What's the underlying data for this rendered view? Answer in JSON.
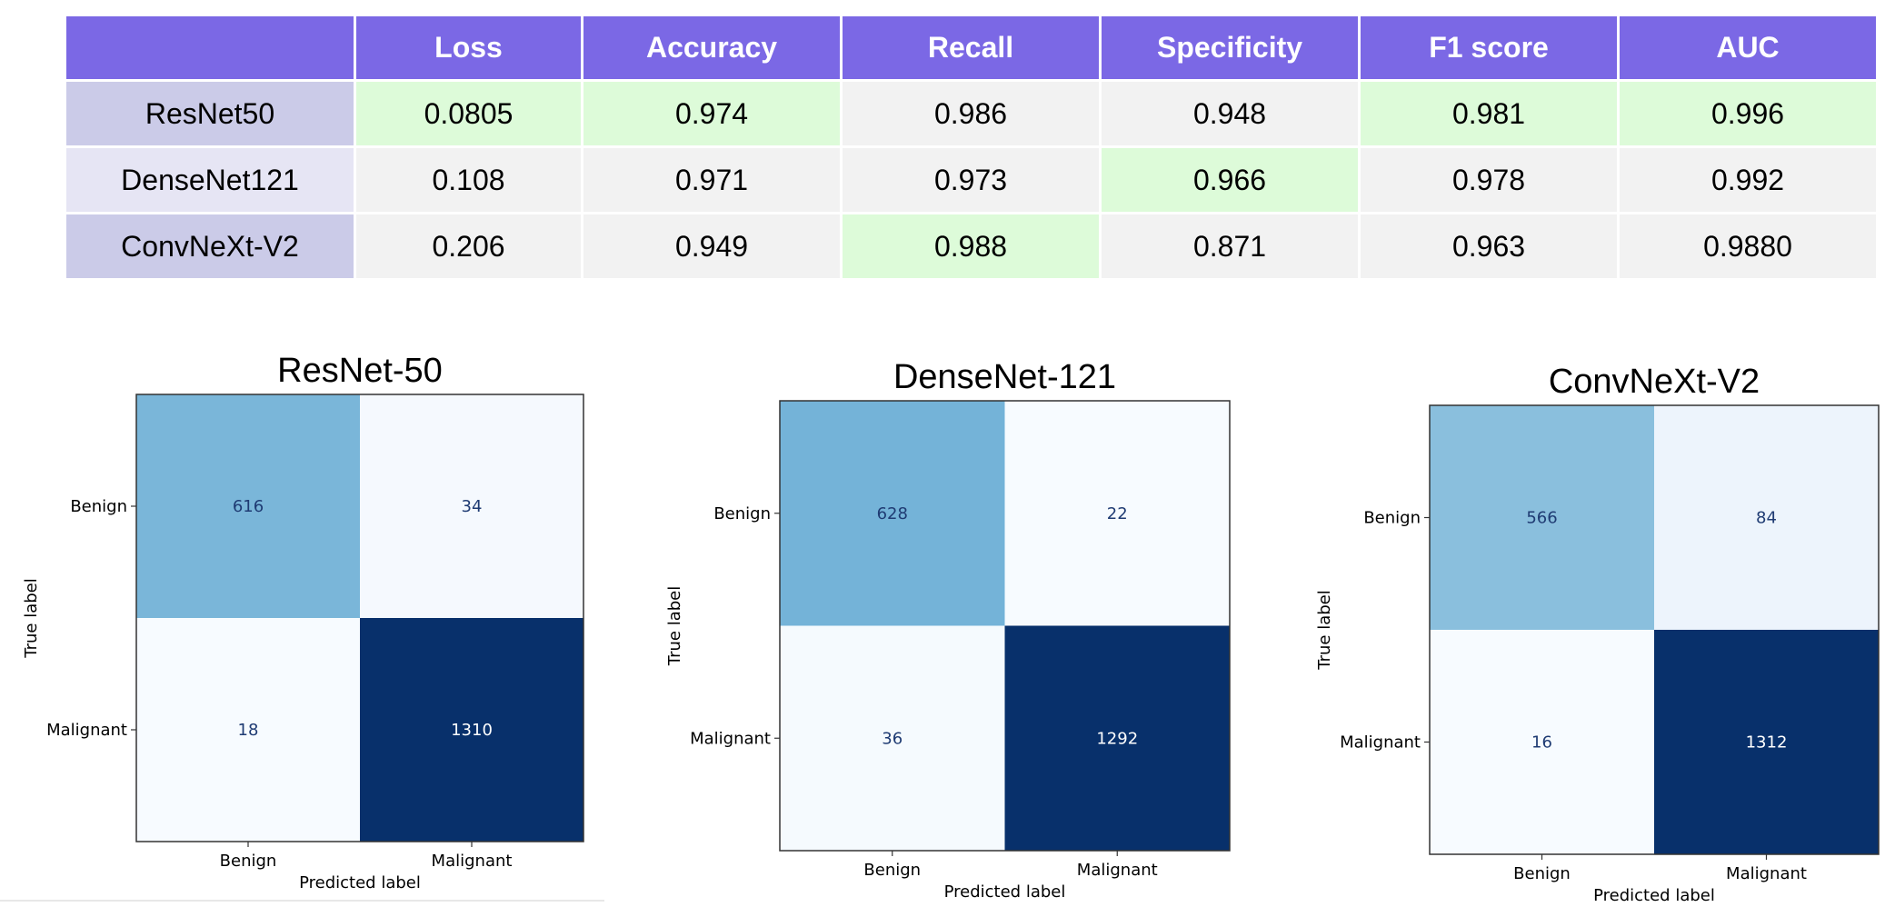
{
  "table": {
    "headers": [
      "",
      "Loss",
      "Accuracy",
      "Recall",
      "Specificity",
      "F1 score",
      "AUC"
    ],
    "rows": [
      {
        "model": "ResNet50",
        "values": [
          "0.0805",
          "0.974",
          "0.986",
          "0.948",
          "0.981",
          "0.996"
        ],
        "highlight": [
          true,
          true,
          false,
          false,
          true,
          true
        ]
      },
      {
        "model": "DenseNet121",
        "values": [
          "0.108",
          "0.971",
          "0.973",
          "0.966",
          "0.978",
          "0.992"
        ],
        "highlight": [
          false,
          false,
          false,
          true,
          false,
          false
        ]
      },
      {
        "model": "ConvNeXt-V2",
        "values": [
          "0.206",
          "0.949",
          "0.988",
          "0.871",
          "0.963",
          "0.9880"
        ],
        "highlight": [
          false,
          false,
          true,
          false,
          false,
          false
        ]
      }
    ],
    "colors": {
      "header": "#7b68e5",
      "best": "#ddfbd9",
      "cell": "#f2f2f2"
    }
  },
  "chart_data": [
    {
      "type": "heatmap",
      "title": "ResNet-50",
      "xlabel": "Predicted label",
      "ylabel": "True label",
      "x_categories": [
        "Benign",
        "Malignant"
      ],
      "y_categories": [
        "Benign",
        "Malignant"
      ],
      "matrix": [
        [
          616,
          34
        ],
        [
          18,
          1310
        ]
      ],
      "colormap": "Blues"
    },
    {
      "type": "heatmap",
      "title": "DenseNet-121",
      "xlabel": "Predicted label",
      "ylabel": "True label",
      "x_categories": [
        "Benign",
        "Malignant"
      ],
      "y_categories": [
        "Benign",
        "Malignant"
      ],
      "matrix": [
        [
          628,
          22
        ],
        [
          36,
          1292
        ]
      ],
      "colormap": "Blues"
    },
    {
      "type": "heatmap",
      "title": "ConvNeXt-V2",
      "xlabel": "Predicted label",
      "ylabel": "True label",
      "x_categories": [
        "Benign",
        "Malignant"
      ],
      "y_categories": [
        "Benign",
        "Malignant"
      ],
      "matrix": [
        [
          566,
          84
        ],
        [
          16,
          1312
        ]
      ],
      "colormap": "Blues"
    }
  ]
}
